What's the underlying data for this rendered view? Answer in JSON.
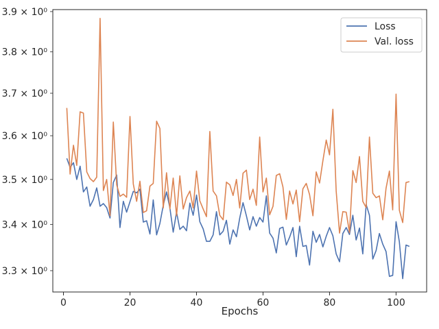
{
  "chart_data": {
    "type": "line",
    "title": "",
    "xlabel": "Epochs",
    "ylabel": "",
    "y_scale": "log",
    "xlim": [
      -3.2,
      109.2
    ],
    "ylim": [
      3.255,
      3.905
    ],
    "x_ticks": [
      {
        "value": 0,
        "label": "0"
      },
      {
        "value": 20,
        "label": "20"
      },
      {
        "value": 40,
        "label": "40"
      },
      {
        "value": 60,
        "label": "60"
      },
      {
        "value": 80,
        "label": "80"
      },
      {
        "value": 100,
        "label": "100"
      }
    ],
    "y_ticks": [
      {
        "value": 3.3,
        "label": "3.3 × 10⁰"
      },
      {
        "value": 3.4,
        "label": "3.4 × 10⁰"
      },
      {
        "value": 3.5,
        "label": "3.5 × 10⁰"
      },
      {
        "value": 3.6,
        "label": "3.6 × 10⁰"
      },
      {
        "value": 3.7,
        "label": "3.7 × 10⁰"
      },
      {
        "value": 3.8,
        "label": "3.8 × 10⁰"
      },
      {
        "value": 3.9,
        "label": "3.9 × 10⁰"
      }
    ],
    "grid": false,
    "legend_position": "top-right",
    "series": [
      {
        "name": "Loss",
        "color": "#4c72b0",
        "x_start": 1,
        "values": [
          3.548,
          3.527,
          3.538,
          3.5,
          3.53,
          3.472,
          3.483,
          3.44,
          3.455,
          3.481,
          3.44,
          3.446,
          3.437,
          3.414,
          3.493,
          3.51,
          3.393,
          3.451,
          3.427,
          3.45,
          3.473,
          3.47,
          3.478,
          3.405,
          3.408,
          3.379,
          3.454,
          3.377,
          3.402,
          3.442,
          3.472,
          3.436,
          3.383,
          3.427,
          3.389,
          3.396,
          3.386,
          3.447,
          3.42,
          3.465,
          3.406,
          3.39,
          3.363,
          3.363,
          3.377,
          3.428,
          3.377,
          3.385,
          3.409,
          3.357,
          3.388,
          3.373,
          3.414,
          3.448,
          3.419,
          3.388,
          3.417,
          3.396,
          3.415,
          3.405,
          3.463,
          3.381,
          3.37,
          3.338,
          3.391,
          3.394,
          3.355,
          3.372,
          3.393,
          3.33,
          3.396,
          3.352,
          3.354,
          3.312,
          3.385,
          3.361,
          3.378,
          3.351,
          3.374,
          3.393,
          3.375,
          3.336,
          3.319,
          3.38,
          3.393,
          3.378,
          3.42,
          3.366,
          3.392,
          3.336,
          3.444,
          3.42,
          3.325,
          3.343,
          3.38,
          3.357,
          3.341,
          3.288,
          3.29,
          3.406,
          3.362,
          3.283,
          3.355,
          3.352
        ]
      },
      {
        "name": "Val. loss",
        "color": "#dd8452",
        "x_start": 1,
        "values": [
          3.665,
          3.512,
          3.578,
          3.532,
          3.656,
          3.653,
          3.517,
          3.502,
          3.495,
          3.505,
          3.883,
          3.475,
          3.5,
          3.419,
          3.632,
          3.488,
          3.462,
          3.467,
          3.46,
          3.645,
          3.49,
          3.451,
          3.496,
          3.426,
          3.43,
          3.485,
          3.491,
          3.634,
          3.617,
          3.436,
          3.515,
          3.434,
          3.503,
          3.419,
          3.508,
          3.434,
          3.459,
          3.474,
          3.436,
          3.519,
          3.452,
          3.434,
          3.417,
          3.61,
          3.474,
          3.463,
          3.42,
          3.41,
          3.494,
          3.488,
          3.464,
          3.5,
          3.436,
          3.514,
          3.521,
          3.455,
          3.478,
          3.442,
          3.597,
          3.472,
          3.503,
          3.421,
          3.44,
          3.509,
          3.513,
          3.483,
          3.411,
          3.474,
          3.445,
          3.476,
          3.406,
          3.479,
          3.491,
          3.466,
          3.419,
          3.517,
          3.492,
          3.542,
          3.59,
          3.556,
          3.662,
          3.474,
          3.381,
          3.428,
          3.427,
          3.382,
          3.52,
          3.493,
          3.552,
          3.451,
          3.437,
          3.597,
          3.469,
          3.459,
          3.463,
          3.41,
          3.48,
          3.519,
          3.432,
          3.698,
          3.431,
          3.404,
          3.493,
          3.495
        ]
      }
    ]
  }
}
